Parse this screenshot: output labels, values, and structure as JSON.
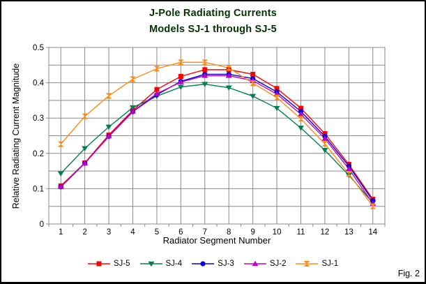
{
  "figure_label": "Fig. 2",
  "styles": {
    "title_color": "#003300",
    "grid_color": "#8a8a8a",
    "axis_color": "#8a8a8a",
    "text_color": "#000000",
    "background": "#ffffff"
  },
  "chart_data": {
    "type": "line",
    "title": "J-Pole Radiating Currents",
    "subtitle": "Models SJ-1 through SJ-5",
    "xlabel": "Radiator Segment Number",
    "ylabel": "Relative Radiating Current Magnitude",
    "categories": [
      1,
      2,
      3,
      4,
      5,
      6,
      7,
      8,
      9,
      10,
      11,
      12,
      13,
      14
    ],
    "ylim": [
      0,
      0.5
    ],
    "y_major_step": 0.1,
    "y_minor_step": 0.05,
    "grid": true,
    "legend_position": "bottom",
    "series": [
      {
        "name": "SJ-5",
        "color": "#ff0000",
        "marker": "square",
        "values": [
          0.108,
          0.173,
          0.252,
          0.322,
          0.381,
          0.418,
          0.437,
          0.437,
          0.424,
          0.384,
          0.328,
          0.256,
          0.169,
          0.07
        ]
      },
      {
        "name": "SJ-4",
        "color": "#008050",
        "marker": "triangle-down",
        "values": [
          0.143,
          0.214,
          0.275,
          0.33,
          0.362,
          0.388,
          0.396,
          0.386,
          0.362,
          0.328,
          0.272,
          0.209,
          0.138,
          0.06
        ]
      },
      {
        "name": "SJ-3",
        "color": "#0000e0",
        "marker": "circle",
        "values": [
          0.105,
          0.172,
          0.248,
          0.318,
          0.366,
          0.404,
          0.424,
          0.424,
          0.412,
          0.374,
          0.319,
          0.248,
          0.164,
          0.066
        ]
      },
      {
        "name": "SJ-2",
        "color": "#c000c0",
        "marker": "triangle-up",
        "values": [
          0.106,
          0.172,
          0.249,
          0.319,
          0.369,
          0.402,
          0.42,
          0.42,
          0.406,
          0.368,
          0.311,
          0.242,
          0.156,
          0.058
        ]
      },
      {
        "name": "SJ-1",
        "color": "#ff8c19",
        "marker": "hourglass",
        "values": [
          0.226,
          0.305,
          0.363,
          0.41,
          0.44,
          0.458,
          0.458,
          0.442,
          0.399,
          0.358,
          0.298,
          0.227,
          0.142,
          0.05
        ]
      }
    ]
  }
}
